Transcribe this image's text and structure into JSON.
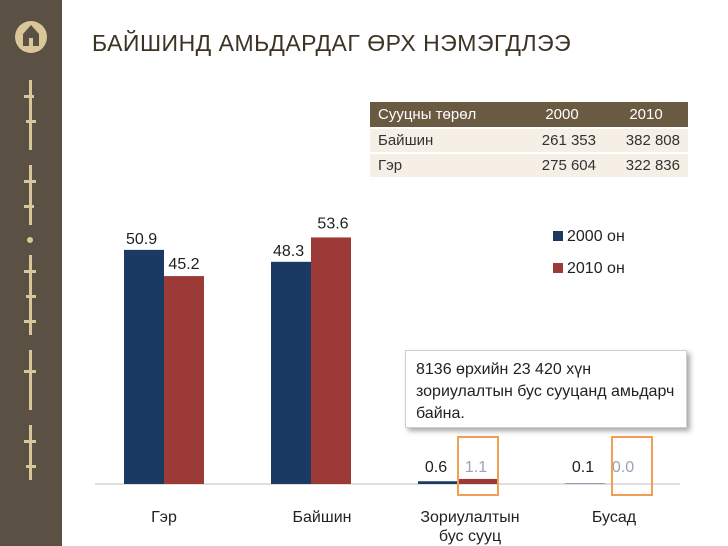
{
  "title": "БАЙШИНД АМЬДАРДАГ ӨРХ НЭМЭГДЛЭЭ",
  "table": {
    "headers": [
      "Сууцны төрөл",
      "2000",
      "2010"
    ],
    "rows": [
      [
        "Байшин",
        "261 353",
        "382 808"
      ],
      [
        "Гэр",
        "275 604",
        "322 836"
      ]
    ]
  },
  "callout": {
    "text": "8136 өрхийн 23 420 хүн зориулалтын бус сууцанд амьдарч байна."
  },
  "colors": {
    "series_2000": "#1b3a63",
    "series_2010": "#9b3a37",
    "highlight": "#f0a050",
    "sidebar": "#5a5043"
  },
  "chart_data": {
    "type": "bar",
    "categories": [
      "Гэр",
      "Байшин",
      "Зориулалтын бус сууц",
      "Бусад"
    ],
    "series": [
      {
        "name": "2000 он",
        "values": [
          50.9,
          48.3,
          0.6,
          0.1
        ],
        "labels": [
          "50.9",
          "48.3",
          "0.6",
          "0.1"
        ]
      },
      {
        "name": "2010 он",
        "values": [
          45.2,
          53.6,
          1.1,
          0.0
        ],
        "labels": [
          "45.2",
          "53.6",
          "1.1",
          "0.0"
        ]
      }
    ],
    "ylim": [
      0,
      60
    ],
    "legend_position": "top-right",
    "grid": false,
    "highlighted_labels": [
      "1.1",
      "0.0"
    ]
  }
}
